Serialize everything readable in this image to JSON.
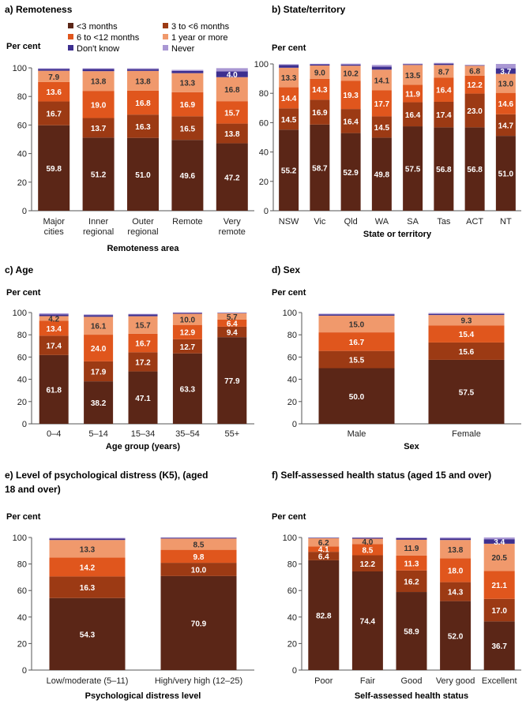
{
  "colors": {
    "lt3": "#5b2617",
    "m3to6": "#9c3a14",
    "m6to12": "#e0561d",
    "yr1plus": "#f0996c",
    "dontknow": "#3d2f8f",
    "never": "#a997d3"
  },
  "legend": [
    {
      "key": "lt3",
      "label": "<3 months"
    },
    {
      "key": "m3to6",
      "label": "3 to <6 months"
    },
    {
      "key": "m6to12",
      "label": "6 to <12 months"
    },
    {
      "key": "yr1plus",
      "label": "1 year or more"
    },
    {
      "key": "dontknow",
      "label": "Don't know"
    },
    {
      "key": "never",
      "label": "Never"
    }
  ],
  "chart_data": [
    {
      "id": "a",
      "type": "bar",
      "stacked": true,
      "title": "a) Remoteness",
      "ylabel": "Per cent",
      "xlabel": "Remoteness area",
      "ylim": [
        0,
        100
      ],
      "yticks": [
        0,
        20,
        40,
        60,
        80,
        100
      ],
      "categories": [
        [
          "Major",
          "cities"
        ],
        [
          "Inner",
          "regional"
        ],
        [
          "Outer",
          "regional"
        ],
        [
          "Remote"
        ],
        [
          "Very",
          "remote"
        ]
      ],
      "series": [
        {
          "key": "lt3",
          "name": "<3 months",
          "values": [
            59.8,
            51.2,
            51.0,
            49.6,
            47.2
          ],
          "labels": [
            "59.8",
            "51.2",
            "51.0",
            "49.6",
            "47.2"
          ]
        },
        {
          "key": "m3to6",
          "name": "3 to <6 months",
          "values": [
            16.7,
            13.7,
            16.3,
            16.5,
            13.8
          ],
          "labels": [
            "16.7",
            "13.7",
            "16.3",
            "16.5",
            "13.8"
          ]
        },
        {
          "key": "m6to12",
          "name": "6 to <12 months",
          "values": [
            13.6,
            19.0,
            16.8,
            16.9,
            15.7
          ],
          "labels": [
            "13.6",
            "19.0",
            "16.8",
            "16.9",
            "15.7"
          ]
        },
        {
          "key": "yr1plus",
          "name": "1 year or more",
          "values": [
            7.9,
            13.8,
            13.8,
            13.3,
            16.8
          ],
          "labels": [
            "7.9",
            "13.8",
            "13.8",
            "13.3",
            "16.8"
          ]
        },
        {
          "key": "dontknow",
          "name": "Don't know",
          "values": [
            1.2,
            1.5,
            1.2,
            1.5,
            4.0
          ],
          "labels": [
            "",
            "",
            "",
            "",
            "4.0"
          ]
        },
        {
          "key": "never",
          "name": "Never",
          "values": [
            0.5,
            0.5,
            0.6,
            0.8,
            2.3
          ],
          "labels": [
            "",
            "",
            "",
            "",
            ""
          ]
        }
      ]
    },
    {
      "id": "b",
      "type": "bar",
      "stacked": true,
      "title": "b) State/territory",
      "ylabel": "Per cent",
      "xlabel": "State or territory",
      "ylim": [
        0,
        100
      ],
      "yticks": [
        0,
        20,
        40,
        60,
        80,
        100
      ],
      "categories": [
        [
          "NSW"
        ],
        [
          "Vic"
        ],
        [
          "Qld"
        ],
        [
          "WA"
        ],
        [
          "SA"
        ],
        [
          "Tas"
        ],
        [
          "ACT"
        ],
        [
          "NT"
        ]
      ],
      "series": [
        {
          "key": "lt3",
          "name": "<3 months",
          "values": [
            55.2,
            58.7,
            52.9,
            49.8,
            57.5,
            56.8,
            56.8,
            51.0
          ],
          "labels": [
            "55.2",
            "58.7",
            "52.9",
            "49.8",
            "57.5",
            "56.8",
            "56.8",
            "51.0"
          ]
        },
        {
          "key": "m3to6",
          "name": "3 to <6 months",
          "values": [
            14.5,
            16.9,
            16.4,
            14.5,
            16.4,
            17.4,
            23.0,
            14.7
          ],
          "labels": [
            "14.5",
            "16.9",
            "16.4",
            "14.5",
            "16.4",
            "17.4",
            "23.0",
            "14.7"
          ]
        },
        {
          "key": "m6to12",
          "name": "6 to <12 months",
          "values": [
            14.4,
            14.3,
            19.3,
            17.7,
            11.9,
            16.4,
            12.2,
            14.6
          ],
          "labels": [
            "14.4",
            "14.3",
            "19.3",
            "17.7",
            "11.9",
            "16.4",
            "12.2",
            "14.6"
          ]
        },
        {
          "key": "yr1plus",
          "name": "1 year or more",
          "values": [
            13.3,
            9.0,
            10.2,
            14.1,
            13.5,
            8.7,
            6.8,
            13.0
          ],
          "labels": [
            "13.3",
            "9.0",
            "10.2",
            "14.1",
            "13.5",
            "8.7",
            "6.8",
            "13.0"
          ]
        },
        {
          "key": "dontknow",
          "name": "Don't know",
          "values": [
            1.9,
            0.8,
            0.8,
            2.0,
            0.5,
            0.9,
            0.3,
            3.7
          ],
          "labels": [
            "",
            "",
            "",
            "",
            "",
            "",
            "",
            "3.7"
          ]
        },
        {
          "key": "never",
          "name": "Never",
          "values": [
            0.5,
            0.4,
            0.6,
            1.2,
            0.4,
            0.5,
            0.3,
            3.0
          ],
          "labels": [
            "",
            "",
            "",
            "",
            "",
            "",
            "",
            ""
          ]
        }
      ]
    },
    {
      "id": "c",
      "type": "bar",
      "stacked": true,
      "title": "c) Age",
      "ylabel": "Per cent",
      "xlabel": "Age group (years)",
      "ylim": [
        0,
        100
      ],
      "yticks": [
        0,
        20,
        40,
        60,
        80,
        100
      ],
      "categories": [
        [
          "0–4"
        ],
        [
          "5–14"
        ],
        [
          "15–34"
        ],
        [
          "35–54"
        ],
        [
          "55+"
        ]
      ],
      "series": [
        {
          "key": "lt3",
          "name": "<3 months",
          "values": [
            61.8,
            38.2,
            47.1,
            63.3,
            77.9
          ],
          "labels": [
            "61.8",
            "38.2",
            "47.1",
            "63.3",
            "77.9"
          ]
        },
        {
          "key": "m3to6",
          "name": "3 to <6 months",
          "values": [
            17.4,
            17.9,
            17.2,
            12.7,
            9.4
          ],
          "labels": [
            "17.4",
            "17.9",
            "17.2",
            "12.7",
            "9.4"
          ]
        },
        {
          "key": "m6to12",
          "name": "6 to <12 months",
          "values": [
            13.4,
            24.0,
            16.7,
            12.9,
            6.4
          ],
          "labels": [
            "13.4",
            "24.0",
            "16.7",
            "12.9",
            "6.4"
          ]
        },
        {
          "key": "yr1plus",
          "name": "1 year or more",
          "values": [
            4.2,
            16.1,
            15.7,
            10.0,
            5.7
          ],
          "labels": [
            "4.2",
            "16.1",
            "15.7",
            "10.0",
            "5.7"
          ]
        },
        {
          "key": "dontknow",
          "name": "Don't know",
          "values": [
            1.5,
            1.5,
            1.5,
            0.8,
            0.4
          ],
          "labels": [
            "",
            "",
            "",
            "",
            ""
          ]
        },
        {
          "key": "never",
          "name": "Never",
          "values": [
            1.0,
            0.6,
            0.6,
            0.4,
            0.2
          ],
          "labels": [
            "",
            "",
            "",
            "",
            ""
          ]
        }
      ]
    },
    {
      "id": "d",
      "type": "bar",
      "stacked": true,
      "title": "d) Sex",
      "ylabel": "Per cent",
      "xlabel": "Sex",
      "ylim": [
        0,
        100
      ],
      "yticks": [
        0,
        20,
        40,
        60,
        80,
        100
      ],
      "categories": [
        [
          "Male"
        ],
        [
          "Female"
        ]
      ],
      "series": [
        {
          "key": "lt3",
          "name": "<3 months",
          "values": [
            50.0,
            57.5
          ],
          "labels": [
            "50.0",
            "57.5"
          ]
        },
        {
          "key": "m3to6",
          "name": "3 to <6 months",
          "values": [
            15.5,
            15.6
          ],
          "labels": [
            "15.5",
            "15.6"
          ]
        },
        {
          "key": "m6to12",
          "name": "6 to <12 months",
          "values": [
            16.7,
            15.4
          ],
          "labels": [
            "16.7",
            "15.4"
          ]
        },
        {
          "key": "yr1plus",
          "name": "1 year or more",
          "values": [
            15.0,
            9.3
          ],
          "labels": [
            "15.0",
            "9.3"
          ]
        },
        {
          "key": "dontknow",
          "name": "Don't know",
          "values": [
            1.2,
            1.0
          ],
          "labels": [
            "",
            ""
          ]
        },
        {
          "key": "never",
          "name": "Never",
          "values": [
            0.6,
            0.8
          ],
          "labels": [
            "",
            ""
          ]
        }
      ]
    },
    {
      "id": "e",
      "type": "bar",
      "stacked": true,
      "title": "e) Level of psychological distress (K5), (aged 18 and over)",
      "ylabel": "Per cent",
      "xlabel": "Psychological distress level",
      "ylim": [
        0,
        100
      ],
      "yticks": [
        0,
        20,
        40,
        60,
        80,
        100
      ],
      "categories": [
        [
          "Low/moderate (5–11)"
        ],
        [
          "High/very high (12–25)"
        ]
      ],
      "series": [
        {
          "key": "lt3",
          "name": "<3 months",
          "values": [
            54.3,
            70.9
          ],
          "labels": [
            "54.3",
            "70.9"
          ]
        },
        {
          "key": "m3to6",
          "name": "3 to <6 months",
          "values": [
            16.3,
            10.0
          ],
          "labels": [
            "16.3",
            "10.0"
          ]
        },
        {
          "key": "m6to12",
          "name": "6 to <12 months",
          "values": [
            14.2,
            9.8
          ],
          "labels": [
            "14.2",
            "9.8"
          ]
        },
        {
          "key": "yr1plus",
          "name": "1 year or more",
          "values": [
            13.3,
            8.5
          ],
          "labels": [
            "13.3",
            "8.5"
          ]
        },
        {
          "key": "dontknow",
          "name": "Don't know",
          "values": [
            1.0,
            0.5
          ],
          "labels": [
            "",
            ""
          ]
        },
        {
          "key": "never",
          "name": "Never",
          "values": [
            0.6,
            0.3
          ],
          "labels": [
            "",
            ""
          ]
        }
      ]
    },
    {
      "id": "f",
      "type": "bar",
      "stacked": true,
      "title": "f) Self-assessed health status (aged 15 and over)",
      "ylabel": "Per cent",
      "xlabel": "Self-assessed health status",
      "ylim": [
        0,
        100
      ],
      "yticks": [
        0,
        20,
        40,
        60,
        80,
        100
      ],
      "categories": [
        [
          "Poor"
        ],
        [
          "Fair"
        ],
        [
          "Good"
        ],
        [
          "Very good"
        ],
        [
          "Excellent"
        ]
      ],
      "series": [
        {
          "key": "lt3",
          "name": "<3 months",
          "values": [
            82.8,
            74.4,
            58.9,
            52.0,
            36.7
          ],
          "labels": [
            "82.8",
            "74.4",
            "58.9",
            "52.0",
            "36.7"
          ]
        },
        {
          "key": "m3to6",
          "name": "3 to <6 months",
          "values": [
            6.4,
            12.2,
            16.2,
            14.3,
            17.0
          ],
          "labels": [
            "6.4",
            "12.2",
            "16.2",
            "14.3",
            "17.0"
          ]
        },
        {
          "key": "m6to12",
          "name": "6 to <12 months",
          "values": [
            4.1,
            8.5,
            11.3,
            18.0,
            21.1
          ],
          "labels": [
            "4.1",
            "8.5",
            "11.3",
            "18.0",
            "21.1"
          ]
        },
        {
          "key": "yr1plus",
          "name": "1 year or more",
          "values": [
            6.2,
            4.0,
            11.9,
            13.8,
            20.5
          ],
          "labels": [
            "6.2",
            "4.0",
            "11.9",
            "13.8",
            "20.5"
          ]
        },
        {
          "key": "dontknow",
          "name": "Don't know",
          "values": [
            0.4,
            0.6,
            1.2,
            1.2,
            3.4
          ],
          "labels": [
            "",
            "",
            "",
            "",
            "3.4"
          ]
        },
        {
          "key": "never",
          "name": "Never",
          "values": [
            0.1,
            0.3,
            0.5,
            0.7,
            1.3
          ],
          "labels": [
            "",
            "",
            "",
            "",
            ""
          ]
        }
      ]
    }
  ]
}
